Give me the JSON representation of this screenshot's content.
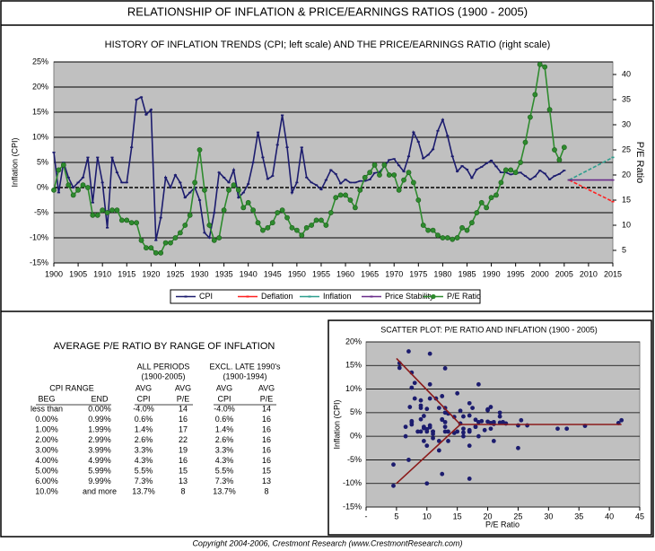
{
  "title": "RELATIONSHIP OF INFLATION & PRICE/EARNINGS RATIOS (1900 - 2005)",
  "chart_data": [
    {
      "type": "line",
      "title": "HISTORY OF INFLATION TRENDS (CPI; left scale) AND THE PRICE/EARNINGS RATIO (right scale)",
      "y_label": "Inflation (CPI)",
      "y2_label": "P/E Ratio",
      "x": [
        1900,
        1901,
        1902,
        1903,
        1904,
        1905,
        1906,
        1907,
        1908,
        1909,
        1910,
        1911,
        1912,
        1913,
        1914,
        1915,
        1916,
        1917,
        1918,
        1919,
        1920,
        1921,
        1922,
        1923,
        1924,
        1925,
        1926,
        1927,
        1928,
        1929,
        1930,
        1931,
        1932,
        1933,
        1934,
        1935,
        1936,
        1937,
        1938,
        1939,
        1940,
        1941,
        1942,
        1943,
        1944,
        1945,
        1946,
        1947,
        1948,
        1949,
        1950,
        1951,
        1952,
        1953,
        1954,
        1955,
        1956,
        1957,
        1958,
        1959,
        1960,
        1961,
        1962,
        1963,
        1964,
        1965,
        1966,
        1967,
        1968,
        1969,
        1970,
        1971,
        1972,
        1973,
        1974,
        1975,
        1976,
        1977,
        1978,
        1979,
        1980,
        1981,
        1982,
        1983,
        1984,
        1985,
        1986,
        1987,
        1988,
        1989,
        1990,
        1991,
        1992,
        1993,
        1994,
        1995,
        1996,
        1997,
        1998,
        1999,
        2000,
        2001,
        2002,
        2003,
        2004,
        2005
      ],
      "xlim": [
        1900,
        2015
      ],
      "xticks": [
        1900,
        1905,
        1910,
        1915,
        1920,
        1925,
        1930,
        1935,
        1940,
        1945,
        1950,
        1955,
        1960,
        1965,
        1970,
        1975,
        1980,
        1985,
        1990,
        1995,
        2000,
        2005,
        2010,
        2015
      ],
      "ylim": [
        -15,
        25
      ],
      "yticks": [
        {
          "value": -15,
          "label": "-15%"
        },
        {
          "value": -10,
          "label": "-10%"
        },
        {
          "value": -5,
          "label": "-5%"
        },
        {
          "value": 0,
          "label": "0%"
        },
        {
          "value": 5,
          "label": "5%"
        },
        {
          "value": 10,
          "label": "10%"
        },
        {
          "value": 15,
          "label": "15%"
        },
        {
          "value": 20,
          "label": "20%"
        },
        {
          "value": 25,
          "label": "25%"
        }
      ],
      "y2lim": [
        2.5,
        42.5
      ],
      "y2ticks": [
        5,
        10,
        15,
        20,
        25,
        30,
        35,
        40
      ],
      "grid": true,
      "legend": "bottom",
      "background": "#c0c0c0",
      "series": [
        {
          "name": "CPI",
          "color": "#1c1c6e",
          "marker": "dash",
          "values": [
            7,
            -1,
            5,
            2,
            0,
            1,
            2,
            6,
            -3,
            6,
            1,
            -8,
            6,
            3,
            1,
            1,
            8,
            17.5,
            18,
            14.5,
            15.5,
            -10.5,
            -6,
            2,
            0,
            2.5,
            1,
            -2,
            -1,
            0,
            -2.5,
            -9,
            -10,
            -5,
            3,
            2,
            1,
            3.5,
            -2,
            -1,
            0.7,
            5,
            11,
            6,
            1.7,
            2.3,
            8.5,
            14.4,
            8,
            -1,
            1,
            8,
            2,
            1,
            0.5,
            -0.4,
            1.5,
            3.5,
            2.7,
            0.8,
            1.6,
            1,
            1,
            1.3,
            1.3,
            1.6,
            2.9,
            3.1,
            4.2,
            5.5,
            5.7,
            4.4,
            3.2,
            6.2,
            11,
            9.1,
            5.8,
            6.5,
            7.6,
            11.3,
            13.5,
            10.3,
            6.2,
            3.2,
            4.3,
            3.6,
            1.9,
            3.6,
            4.1,
            4.8,
            5.4,
            4.2,
            3,
            3,
            2.6,
            2.8,
            3,
            2.3,
            1.6,
            2.2,
            3.4,
            2.8,
            1.6,
            2.3,
            2.7,
            3.4
          ]
        },
        {
          "name": "Deflation",
          "color": "#ff2020",
          "marker": "dash",
          "dash": true,
          "x": [
            2006,
            2015
          ],
          "values": [
            1.5,
            -2.8
          ]
        },
        {
          "name": "Inflation",
          "color": "#2e9e8e",
          "marker": "dash",
          "dash": true,
          "x": [
            2006,
            2015
          ],
          "values": [
            1.5,
            6
          ]
        },
        {
          "name": "Price Stability",
          "color": "#6a2c8a",
          "marker": "dash",
          "x": [
            2006,
            2015
          ],
          "values": [
            1.5,
            1.5
          ]
        },
        {
          "name": "P/E Ratio",
          "color": "#2e8b2e",
          "marker": "circle",
          "axis": "y2",
          "values": [
            17,
            21,
            22,
            18,
            16,
            17,
            18,
            17.5,
            12,
            12,
            13,
            12.5,
            13,
            13,
            11,
            11,
            10.5,
            10.5,
            7,
            5.5,
            5.5,
            4.5,
            4.5,
            6.5,
            6.5,
            7.5,
            8.5,
            10,
            12,
            18.5,
            25,
            17,
            10,
            7,
            7.5,
            13,
            17,
            18,
            17,
            13.5,
            14.5,
            13,
            10.5,
            9,
            9.5,
            10.5,
            12.5,
            13,
            11.5,
            9.5,
            9,
            8,
            9.5,
            10,
            11,
            11,
            10,
            12.5,
            15.5,
            16,
            16,
            15,
            13.5,
            17,
            19.5,
            20.5,
            22,
            20,
            22,
            20,
            20,
            17,
            19,
            20.5,
            18.5,
            15,
            10,
            9,
            9,
            8,
            7.5,
            7.5,
            7.2,
            7.5,
            9.5,
            9,
            10.5,
            12.5,
            14.5,
            13.5,
            15.5,
            16,
            18.5,
            21,
            21,
            20.5,
            22.5,
            26.5,
            31.5,
            36,
            42,
            41.5,
            33,
            25,
            23,
            25.5
          ]
        }
      ]
    },
    {
      "type": "scatter",
      "title": "SCATTER PLOT: P/E RATIO AND INFLATION (1900 - 2005)",
      "x_label": "P/E Ratio",
      "y_label": "Inflation (CPI)",
      "xlim": [
        0,
        45
      ],
      "xticks": [
        {
          "value": 0,
          "label": "-"
        },
        5,
        10,
        15,
        20,
        25,
        30,
        35,
        40,
        45
      ],
      "ylim": [
        -15,
        20
      ],
      "yticks": [
        {
          "value": -15,
          "label": "-15%"
        },
        {
          "value": -10,
          "label": "-10%"
        },
        {
          "value": -5,
          "label": "-5%"
        },
        {
          "value": 0,
          "label": "0%"
        },
        {
          "value": 5,
          "label": "5%"
        },
        {
          "value": 10,
          "label": "10%"
        },
        {
          "value": 15,
          "label": "15%"
        },
        {
          "value": 20,
          "label": "20%"
        }
      ],
      "grid": true,
      "background": "#c0c0c0",
      "color": "#1c1c6e",
      "trend_lines": [
        {
          "color": "#8b1a1a",
          "x": [
            5,
            15.5,
            42
          ],
          "values": [
            16.5,
            2.5,
            2.5
          ]
        },
        {
          "color": "#8b1a1a",
          "x": [
            5,
            15.5
          ],
          "values": [
            -10,
            2.5
          ]
        }
      ]
    }
  ],
  "table": {
    "title": "AVERAGE P/E RATIO BY RANGE OF INFLATION",
    "group_headers": [
      "ALL PERIODS",
      "EXCL. LATE 1990's"
    ],
    "group_periods": [
      "(1900-2005)",
      "(1900-1994)"
    ],
    "range_header": "CPI RANGE",
    "column_headers_top": [
      "AVG",
      "AVG",
      "AVG",
      "AVG"
    ],
    "column_headers": [
      "BEG",
      "END",
      "CPI",
      "P/E",
      "CPI",
      "P/E"
    ],
    "rows": [
      [
        "less than",
        "0.00%",
        "-4.0%",
        14,
        "-4.0%",
        14
      ],
      [
        "0.00%",
        "0.99%",
        "0.6%",
        16,
        "0.6%",
        16
      ],
      [
        "1.00%",
        "1.99%",
        "1.4%",
        17,
        "1.4%",
        16
      ],
      [
        "2.00%",
        "2.99%",
        "2.6%",
        22,
        "2.6%",
        16
      ],
      [
        "3.00%",
        "3.99%",
        "3.3%",
        19,
        "3.3%",
        16
      ],
      [
        "4.00%",
        "4.99%",
        "4.3%",
        16,
        "4.3%",
        16
      ],
      [
        "5.00%",
        "5.99%",
        "5.5%",
        15,
        "5.5%",
        15
      ],
      [
        "6.00%",
        "9.99%",
        "7.3%",
        13,
        "7.3%",
        13
      ],
      [
        "10.0%",
        "and more",
        "13.7%",
        8,
        "13.7%",
        8
      ]
    ]
  },
  "footer": "Copyright 2004-2006, Crestmont Research (www.CrestmontResearch.com)"
}
